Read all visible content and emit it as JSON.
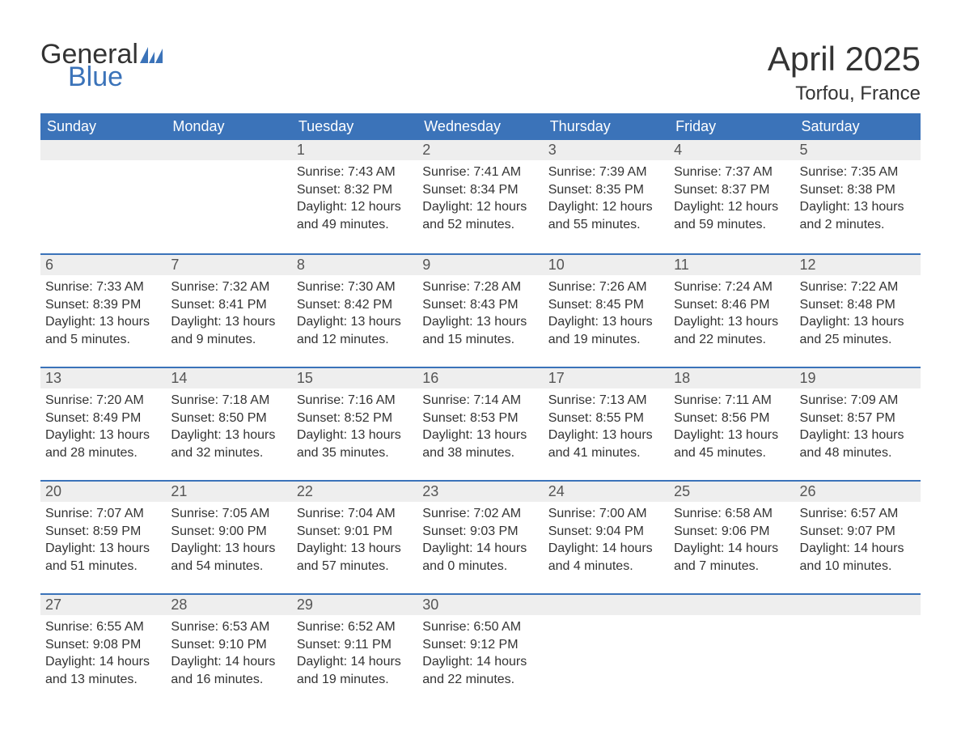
{
  "colors": {
    "header_bg": "#3b73b9",
    "header_text": "#ffffff",
    "daynum_bg": "#eeeeee",
    "daynum_border": "#3b73b9",
    "body_text": "#333333",
    "logo_blue": "#3b73b9",
    "page_bg": "#ffffff"
  },
  "typography": {
    "title_fontsize": 42,
    "location_fontsize": 24,
    "header_fontsize": 18,
    "daynum_fontsize": 18,
    "body_fontsize": 16,
    "logo_fontsize": 34
  },
  "logo": {
    "line1": "General",
    "line2": "Blue"
  },
  "title": {
    "month": "April 2025",
    "location": "Torfou, France"
  },
  "weekdays": [
    "Sunday",
    "Monday",
    "Tuesday",
    "Wednesday",
    "Thursday",
    "Friday",
    "Saturday"
  ],
  "labels": {
    "sunrise": "Sunrise:",
    "sunset": "Sunset:",
    "daylight": "Daylight:"
  },
  "grid": {
    "columns": 7,
    "rows": 5,
    "start_weekday_index": 2
  },
  "days": [
    {
      "n": 1,
      "sunrise": "7:43 AM",
      "sunset": "8:32 PM",
      "daylight": "12 hours and 49 minutes."
    },
    {
      "n": 2,
      "sunrise": "7:41 AM",
      "sunset": "8:34 PM",
      "daylight": "12 hours and 52 minutes."
    },
    {
      "n": 3,
      "sunrise": "7:39 AM",
      "sunset": "8:35 PM",
      "daylight": "12 hours and 55 minutes."
    },
    {
      "n": 4,
      "sunrise": "7:37 AM",
      "sunset": "8:37 PM",
      "daylight": "12 hours and 59 minutes."
    },
    {
      "n": 5,
      "sunrise": "7:35 AM",
      "sunset": "8:38 PM",
      "daylight": "13 hours and 2 minutes."
    },
    {
      "n": 6,
      "sunrise": "7:33 AM",
      "sunset": "8:39 PM",
      "daylight": "13 hours and 5 minutes."
    },
    {
      "n": 7,
      "sunrise": "7:32 AM",
      "sunset": "8:41 PM",
      "daylight": "13 hours and 9 minutes."
    },
    {
      "n": 8,
      "sunrise": "7:30 AM",
      "sunset": "8:42 PM",
      "daylight": "13 hours and 12 minutes."
    },
    {
      "n": 9,
      "sunrise": "7:28 AM",
      "sunset": "8:43 PM",
      "daylight": "13 hours and 15 minutes."
    },
    {
      "n": 10,
      "sunrise": "7:26 AM",
      "sunset": "8:45 PM",
      "daylight": "13 hours and 19 minutes."
    },
    {
      "n": 11,
      "sunrise": "7:24 AM",
      "sunset": "8:46 PM",
      "daylight": "13 hours and 22 minutes."
    },
    {
      "n": 12,
      "sunrise": "7:22 AM",
      "sunset": "8:48 PM",
      "daylight": "13 hours and 25 minutes."
    },
    {
      "n": 13,
      "sunrise": "7:20 AM",
      "sunset": "8:49 PM",
      "daylight": "13 hours and 28 minutes."
    },
    {
      "n": 14,
      "sunrise": "7:18 AM",
      "sunset": "8:50 PM",
      "daylight": "13 hours and 32 minutes."
    },
    {
      "n": 15,
      "sunrise": "7:16 AM",
      "sunset": "8:52 PM",
      "daylight": "13 hours and 35 minutes."
    },
    {
      "n": 16,
      "sunrise": "7:14 AM",
      "sunset": "8:53 PM",
      "daylight": "13 hours and 38 minutes."
    },
    {
      "n": 17,
      "sunrise": "7:13 AM",
      "sunset": "8:55 PM",
      "daylight": "13 hours and 41 minutes."
    },
    {
      "n": 18,
      "sunrise": "7:11 AM",
      "sunset": "8:56 PM",
      "daylight": "13 hours and 45 minutes."
    },
    {
      "n": 19,
      "sunrise": "7:09 AM",
      "sunset": "8:57 PM",
      "daylight": "13 hours and 48 minutes."
    },
    {
      "n": 20,
      "sunrise": "7:07 AM",
      "sunset": "8:59 PM",
      "daylight": "13 hours and 51 minutes."
    },
    {
      "n": 21,
      "sunrise": "7:05 AM",
      "sunset": "9:00 PM",
      "daylight": "13 hours and 54 minutes."
    },
    {
      "n": 22,
      "sunrise": "7:04 AM",
      "sunset": "9:01 PM",
      "daylight": "13 hours and 57 minutes."
    },
    {
      "n": 23,
      "sunrise": "7:02 AM",
      "sunset": "9:03 PM",
      "daylight": "14 hours and 0 minutes."
    },
    {
      "n": 24,
      "sunrise": "7:00 AM",
      "sunset": "9:04 PM",
      "daylight": "14 hours and 4 minutes."
    },
    {
      "n": 25,
      "sunrise": "6:58 AM",
      "sunset": "9:06 PM",
      "daylight": "14 hours and 7 minutes."
    },
    {
      "n": 26,
      "sunrise": "6:57 AM",
      "sunset": "9:07 PM",
      "daylight": "14 hours and 10 minutes."
    },
    {
      "n": 27,
      "sunrise": "6:55 AM",
      "sunset": "9:08 PM",
      "daylight": "14 hours and 13 minutes."
    },
    {
      "n": 28,
      "sunrise": "6:53 AM",
      "sunset": "9:10 PM",
      "daylight": "14 hours and 16 minutes."
    },
    {
      "n": 29,
      "sunrise": "6:52 AM",
      "sunset": "9:11 PM",
      "daylight": "14 hours and 19 minutes."
    },
    {
      "n": 30,
      "sunrise": "6:50 AM",
      "sunset": "9:12 PM",
      "daylight": "14 hours and 22 minutes."
    }
  ]
}
